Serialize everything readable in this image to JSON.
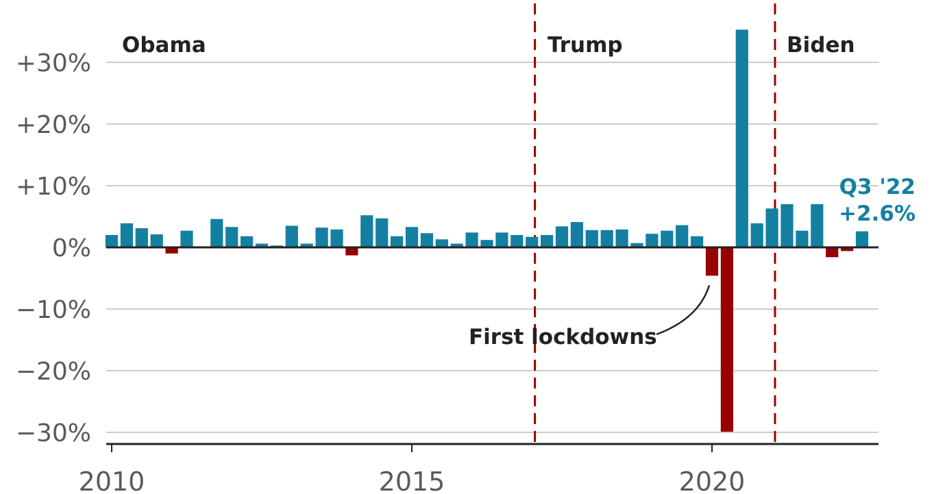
{
  "chart_data": {
    "type": "bar",
    "title": "",
    "xlabel": "",
    "ylabel": "",
    "ylim": [
      -30,
      35
    ],
    "y_ticks": [
      {
        "value": 30,
        "label": "+30%"
      },
      {
        "value": 20,
        "label": "+20%"
      },
      {
        "value": 10,
        "label": "+10%"
      },
      {
        "value": 0,
        "label": "0%"
      },
      {
        "value": -10,
        "label": "−10%"
      },
      {
        "value": -20,
        "label": "−20%"
      },
      {
        "value": -30,
        "label": "−30%"
      }
    ],
    "x_ticks": [
      {
        "value": 2010,
        "label": "2010"
      },
      {
        "value": 2015,
        "label": "2015"
      },
      {
        "value": 2020,
        "label": "2020"
      }
    ],
    "grid": true,
    "colors": {
      "positive": "#1380a1",
      "negative": "#990000",
      "grid": "#cccccc",
      "axis": "#222222",
      "divider": "#990000"
    },
    "quarters": [
      "2010 Q1",
      "2010 Q2",
      "2010 Q3",
      "2010 Q4",
      "2011 Q1",
      "2011 Q2",
      "2011 Q3",
      "2011 Q4",
      "2012 Q1",
      "2012 Q2",
      "2012 Q3",
      "2012 Q4",
      "2013 Q1",
      "2013 Q2",
      "2013 Q3",
      "2013 Q4",
      "2014 Q1",
      "2014 Q2",
      "2014 Q3",
      "2014 Q4",
      "2015 Q1",
      "2015 Q2",
      "2015 Q3",
      "2015 Q4",
      "2016 Q1",
      "2016 Q2",
      "2016 Q3",
      "2016 Q4",
      "2017 Q1",
      "2017 Q2",
      "2017 Q3",
      "2017 Q4",
      "2018 Q1",
      "2018 Q2",
      "2018 Q3",
      "2018 Q4",
      "2019 Q1",
      "2019 Q2",
      "2019 Q3",
      "2019 Q4",
      "2020 Q1",
      "2020 Q2",
      "2020 Q3",
      "2020 Q4",
      "2021 Q1",
      "2021 Q2",
      "2021 Q3",
      "2021 Q4",
      "2022 Q1",
      "2022 Q2",
      "2022 Q3"
    ],
    "values": [
      2.0,
      3.9,
      3.1,
      2.1,
      -1.0,
      2.7,
      0.0,
      4.6,
      3.3,
      1.8,
      0.6,
      0.3,
      3.5,
      0.6,
      3.2,
      2.9,
      -1.3,
      5.2,
      4.7,
      1.8,
      3.3,
      2.3,
      1.3,
      0.6,
      2.4,
      1.2,
      2.4,
      2.0,
      1.7,
      2.0,
      3.4,
      4.1,
      2.8,
      2.8,
      2.9,
      0.7,
      2.2,
      2.7,
      3.6,
      1.8,
      -4.6,
      -29.9,
      35.3,
      3.9,
      6.3,
      7.0,
      2.7,
      7.0,
      -1.6,
      -0.6,
      2.6
    ],
    "eras": [
      {
        "label": "Obama",
        "start": 2010.0
      },
      {
        "label": "Trump",
        "start": 2017.05
      },
      {
        "label": "Biden",
        "start": 2021.05
      }
    ],
    "annotations": {
      "lockdown": "First lockdowns",
      "latest_quarter": "Q3 '22",
      "latest_value": "+2.6%"
    }
  }
}
